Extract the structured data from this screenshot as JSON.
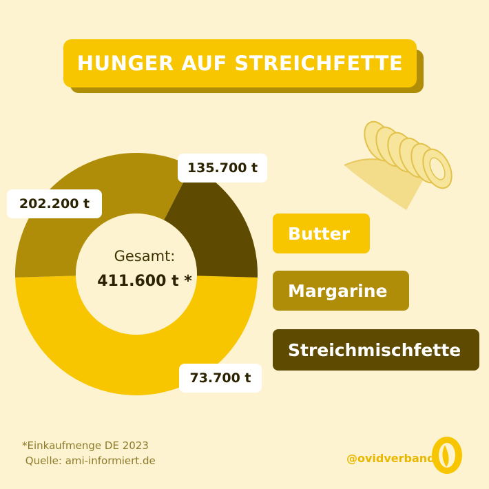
{
  "title": "HUNGER AUF STREICHFETTE",
  "center": {
    "label": "Gesamt:",
    "value": "411.600 t *"
  },
  "chart_data": {
    "type": "pie",
    "title": "HUNGER AUF STREICHFETTE",
    "unit": "t",
    "total": 411600,
    "categories": [
      "Butter",
      "Margarine",
      "Streichmischfette"
    ],
    "values": [
      202200,
      135700,
      73700
    ],
    "value_labels": [
      "202.200 t",
      "135.700 t",
      "73.700 t"
    ],
    "colors": [
      "#f7c600",
      "#b08d08",
      "#5e4a00"
    ],
    "legend_position": "right"
  },
  "legend": [
    {
      "label": "Butter",
      "color": "#f7c600"
    },
    {
      "label": "Margarine",
      "color": "#b08d08"
    },
    {
      "label": "Streichmischfette",
      "color": "#5e4a00"
    }
  ],
  "footnote": {
    "line1": "*Einkaufmenge DE 2023",
    "line2": " Quelle: ami-informiert.de"
  },
  "brand": {
    "handle": "@ovidverband"
  },
  "colors": {
    "background": "#fdf3d0",
    "accent": "#f7c600"
  }
}
